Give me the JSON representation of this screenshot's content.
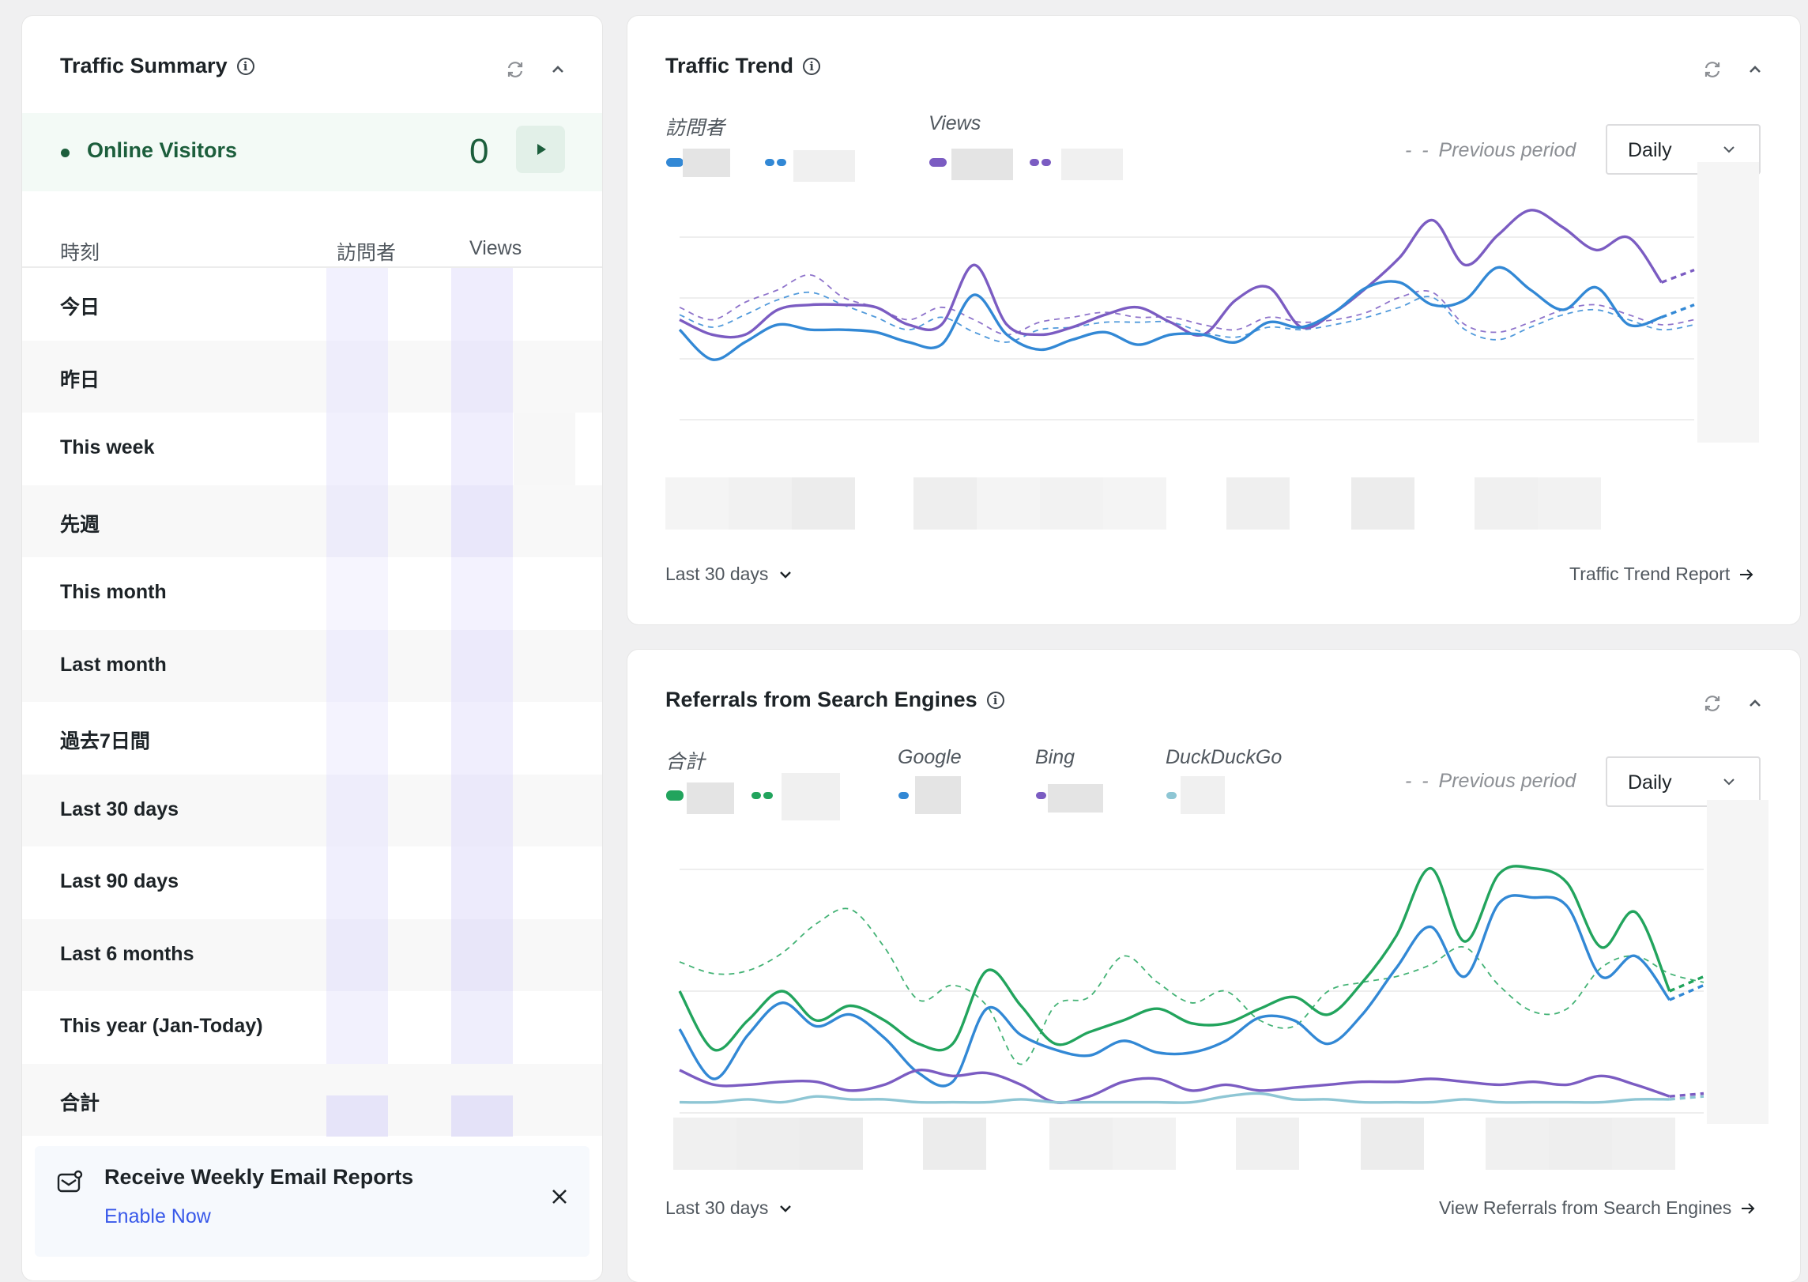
{
  "summary": {
    "title": "Traffic Summary",
    "online_label": "Online Visitors",
    "online_count": "0",
    "col_time": "時刻",
    "col_visitors": "訪問者",
    "col_views": "Views",
    "rows": [
      {
        "label": "今日"
      },
      {
        "label": "昨日"
      },
      {
        "label": "This week"
      },
      {
        "label": "先週"
      },
      {
        "label": "This month"
      },
      {
        "label": "Last month"
      },
      {
        "label": "過去7日間"
      },
      {
        "label": "Last 30 days"
      },
      {
        "label": "Last 90 days"
      },
      {
        "label": "Last 6 months"
      },
      {
        "label": "This year (Jan-Today)"
      },
      {
        "label": "合計"
      }
    ],
    "email": {
      "title": "Receive Weekly Email Reports",
      "link": "Enable Now"
    }
  },
  "trend": {
    "title": "Traffic Trend",
    "legend_visitors": "訪問者",
    "legend_views": "Views",
    "previous_period": "Previous period",
    "select_value": "Daily",
    "footer_range": "Last 30 days",
    "footer_link": "Traffic Trend Report",
    "colors": {
      "visitors": "#3288d5",
      "views": "#7b5cc2"
    }
  },
  "referrals": {
    "title": "Referrals from Search Engines",
    "legend_total": "合計",
    "legend_google": "Google",
    "legend_bing": "Bing",
    "legend_duckduckgo": "DuckDuckGo",
    "previous_period": "Previous period",
    "select_value": "Daily",
    "footer_range": "Last 30 days",
    "footer_link": "View Referrals from Search Engines",
    "colors": {
      "total": "#22a45d",
      "google": "#3288d5",
      "bing": "#7b5cc2",
      "duckduckgo": "#8ec6d4"
    }
  },
  "chart_data": [
    {
      "type": "line",
      "series": [
        {
          "name": "Views",
          "values": [
            43,
            37,
            37,
            47,
            49,
            49,
            48,
            41,
            41,
            65,
            41,
            37,
            40,
            45,
            48,
            42,
            37,
            51,
            56,
            40,
            46,
            56,
            68,
            83,
            65,
            77,
            87,
            80,
            71,
            76,
            58,
            63
          ]
        },
        {
          "name": "Views (Previous period)",
          "values": [
            48,
            43,
            50,
            55,
            61,
            52,
            48,
            43,
            48,
            43,
            37,
            42,
            44,
            46,
            44,
            44,
            41,
            39,
            44,
            42,
            43,
            46,
            52,
            54,
            41,
            38,
            42,
            47,
            49,
            45,
            41,
            43
          ],
          "dashed": true
        },
        {
          "name": "訪問者",
          "values": [
            39,
            27,
            34,
            41,
            39,
            39,
            38,
            34,
            33,
            53,
            37,
            31,
            35,
            38,
            33,
            37,
            37,
            34,
            42,
            40,
            46,
            56,
            58,
            49,
            51,
            64,
            55,
            47,
            56,
            41,
            44,
            49
          ]
        },
        {
          "name": "訪問者 (Previous period)",
          "values": [
            45,
            40,
            45,
            51,
            54,
            49,
            44,
            39,
            44,
            38,
            34,
            39,
            40,
            42,
            42,
            42,
            38,
            36,
            40,
            39,
            41,
            44,
            48,
            52,
            39,
            35,
            40,
            45,
            47,
            43,
            39,
            41
          ],
          "dashed": true
        }
      ]
    },
    {
      "type": "line",
      "series": [
        {
          "name": "合計",
          "values": [
            40,
            20,
            30,
            40,
            30,
            35,
            30,
            22,
            22,
            47,
            35,
            22,
            26,
            30,
            34,
            29,
            29,
            34,
            38,
            32,
            43,
            59,
            82,
            57,
            80,
            82,
            77,
            55,
            67,
            40,
            45
          ]
        },
        {
          "name": "合計 (Previous period)",
          "values": [
            50,
            46,
            47,
            53,
            63,
            68,
            55,
            37,
            42,
            35,
            15,
            35,
            38,
            52,
            43,
            36,
            40,
            30,
            28,
            40,
            43,
            45,
            49,
            55,
            42,
            33,
            34,
            48,
            52,
            46,
            43
          ],
          "dashed": true
        },
        {
          "name": "Google",
          "values": [
            27,
            10,
            25,
            36,
            28,
            32,
            24,
            12,
            9,
            34,
            25,
            20,
            18,
            23,
            19,
            19,
            23,
            31,
            30,
            22,
            32,
            48,
            62,
            45,
            70,
            72,
            69,
            45,
            52,
            37,
            42
          ]
        },
        {
          "name": "Bing",
          "values": [
            13,
            8,
            8,
            9,
            9,
            6,
            8,
            13,
            11,
            12,
            8,
            2,
            4,
            9,
            10,
            6,
            8,
            6,
            7,
            8,
            9,
            9,
            10,
            9,
            8,
            9,
            8,
            11,
            8,
            4,
            5
          ]
        },
        {
          "name": "DuckDuckGo",
          "values": [
            2,
            2,
            3,
            2,
            4,
            3,
            3,
            2,
            2,
            2,
            3,
            2,
            2,
            2,
            2,
            2,
            4,
            5,
            3,
            3,
            2,
            2,
            2,
            3,
            2,
            2,
            2,
            2,
            3,
            3,
            4
          ]
        }
      ]
    }
  ]
}
